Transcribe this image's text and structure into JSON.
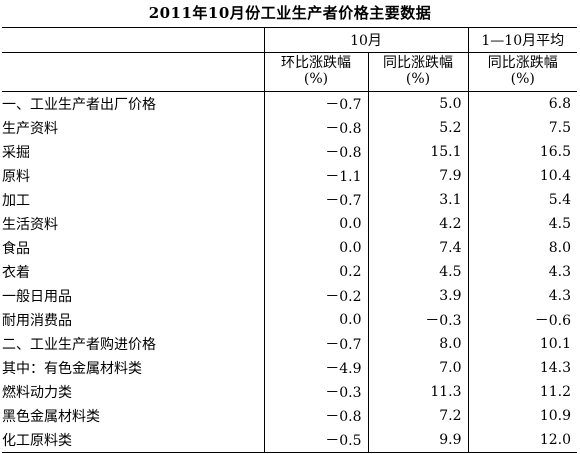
{
  "title": "2011年10月份工业生产者价格主要数据",
  "header": {
    "group_october": "10月",
    "group_avg": "1—10月平均",
    "col_mom": "环比涨跌幅",
    "col_yoy": "同比涨跌幅",
    "col_avg_yoy": "同比涨跌幅",
    "unit": "(%)"
  },
  "rows": [
    {
      "label": "一、工业生产者出厂价格",
      "mom": "－0.7",
      "yoy": "5.0",
      "avg": "6.8"
    },
    {
      "label": "生产资料",
      "mom": "－0.8",
      "yoy": "5.2",
      "avg": "7.5"
    },
    {
      "label": "采掘",
      "mom": "－0.8",
      "yoy": "15.1",
      "avg": "16.5"
    },
    {
      "label": "原料",
      "mom": "－1.1",
      "yoy": "7.9",
      "avg": "10.4"
    },
    {
      "label": "加工",
      "mom": "－0.7",
      "yoy": "3.1",
      "avg": "5.4"
    },
    {
      "label": "生活资料",
      "mom": "0.0",
      "yoy": "4.2",
      "avg": "4.5"
    },
    {
      "label": "食品",
      "mom": "0.0",
      "yoy": "7.4",
      "avg": "8.0"
    },
    {
      "label": "衣着",
      "mom": "0.2",
      "yoy": "4.5",
      "avg": "4.3"
    },
    {
      "label": "一般日用品",
      "mom": "－0.2",
      "yoy": "3.9",
      "avg": "4.3"
    },
    {
      "label": "耐用消费品",
      "mom": "0.0",
      "yoy": "－0.3",
      "avg": "－0.6"
    },
    {
      "label": "二、工业生产者购进价格",
      "mom": "－0.7",
      "yoy": "8.0",
      "avg": "10.1"
    },
    {
      "label": "其中：有色金属材料类",
      "mom": "－4.9",
      "yoy": "7.0",
      "avg": "14.3"
    },
    {
      "label": "燃料动力类",
      "mom": "－0.3",
      "yoy": "11.3",
      "avg": "11.2"
    },
    {
      "label": "黑色金属材料类",
      "mom": "－0.8",
      "yoy": "7.2",
      "avg": "10.9"
    },
    {
      "label": "化工原料类",
      "mom": "－0.5",
      "yoy": "9.9",
      "avg": "12.0"
    }
  ]
}
